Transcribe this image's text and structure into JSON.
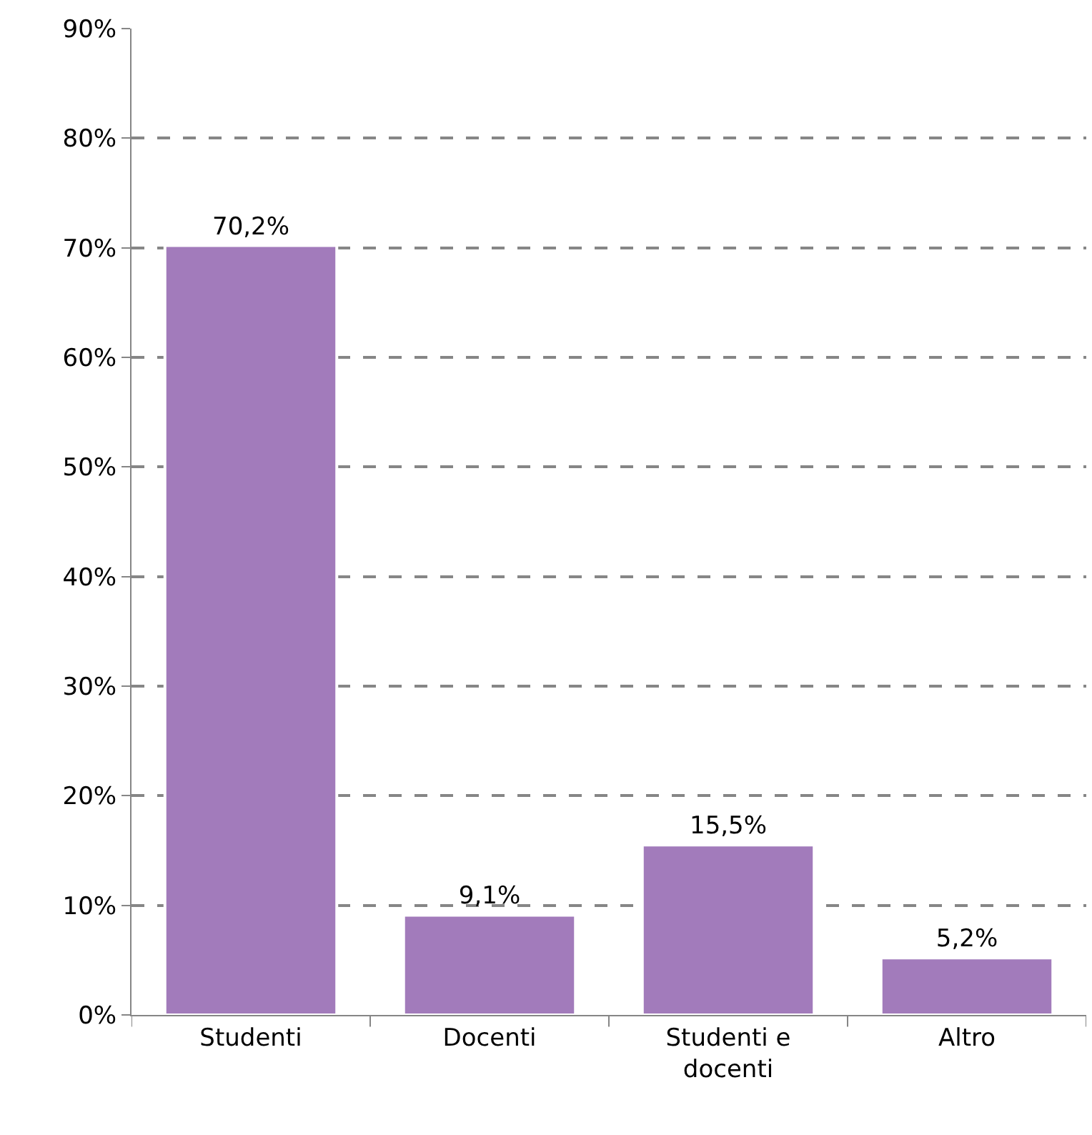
{
  "chart_data": {
    "type": "bar",
    "categories": [
      "Studenti",
      "Docenti",
      "Studenti e docenti",
      "Altro"
    ],
    "values": [
      70.2,
      9.1,
      15.5,
      5.2
    ],
    "value_labels": [
      "70,2%",
      "9,1%",
      "15,5%",
      "5,2%"
    ],
    "color": "#a27bbb",
    "ylim": [
      0,
      90
    ],
    "yticks": [
      {
        "value": 0,
        "label": "0%"
      },
      {
        "value": 10,
        "label": "10%"
      },
      {
        "value": 20,
        "label": "20%"
      },
      {
        "value": 30,
        "label": "30%"
      },
      {
        "value": 40,
        "label": "40%"
      },
      {
        "value": 50,
        "label": "50%"
      },
      {
        "value": 60,
        "label": "60%"
      },
      {
        "value": 70,
        "label": "70%"
      },
      {
        "value": 80,
        "label": "80%"
      },
      {
        "value": 90,
        "label": "90%"
      }
    ],
    "grid": "y",
    "legend": false
  }
}
